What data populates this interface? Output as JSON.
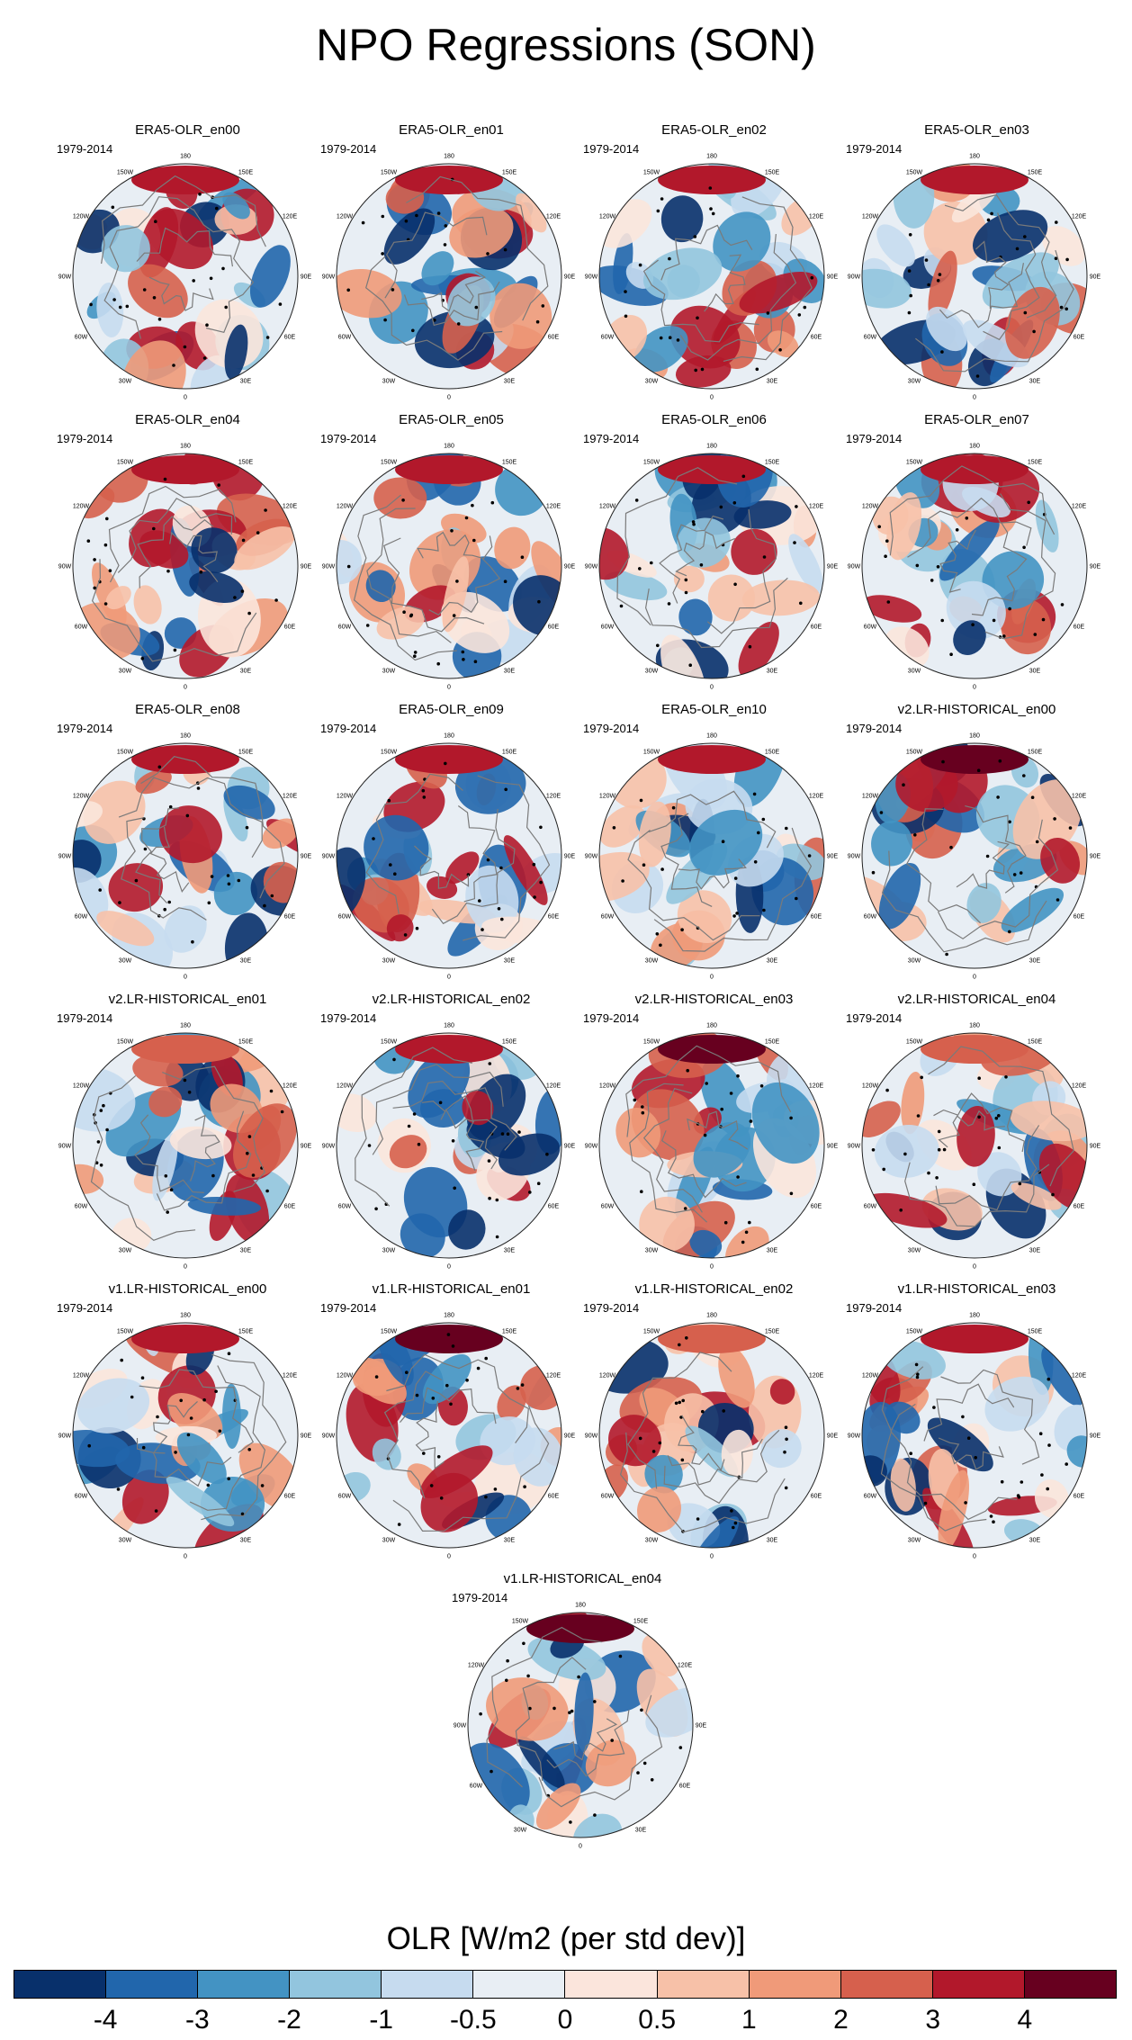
{
  "title": "NPO Regressions (SON)",
  "period_label": "1979-2014",
  "longitude_labels": {
    "deg180": "180",
    "w150": "150W",
    "e150": "150E",
    "w120": "120W",
    "e120": "120E",
    "w90": "90W",
    "e90": "90E",
    "w60": "60W",
    "e60": "60E",
    "w30": "30W",
    "e30": "30E",
    "deg0": "0"
  },
  "panels": [
    {
      "title": "ERA5-OLR_en00"
    },
    {
      "title": "ERA5-OLR_en01"
    },
    {
      "title": "ERA5-OLR_en02"
    },
    {
      "title": "ERA5-OLR_en03"
    },
    {
      "title": "ERA5-OLR_en04"
    },
    {
      "title": "ERA5-OLR_en05"
    },
    {
      "title": "ERA5-OLR_en06"
    },
    {
      "title": "ERA5-OLR_en07"
    },
    {
      "title": "ERA5-OLR_en08"
    },
    {
      "title": "ERA5-OLR_en09"
    },
    {
      "title": "ERA5-OLR_en10"
    },
    {
      "title": "v2.LR-HISTORICAL_en00"
    },
    {
      "title": "v2.LR-HISTORICAL_en01"
    },
    {
      "title": "v2.LR-HISTORICAL_en02"
    },
    {
      "title": "v2.LR-HISTORICAL_en03"
    },
    {
      "title": "v2.LR-HISTORICAL_en04"
    },
    {
      "title": "v1.LR-HISTORICAL_en00"
    },
    {
      "title": "v1.LR-HISTORICAL_en01"
    },
    {
      "title": "v1.LR-HISTORICAL_en02"
    },
    {
      "title": "v1.LR-HISTORICAL_en03"
    },
    {
      "title": "v1.LR-HISTORICAL_en04"
    }
  ],
  "colorbar": {
    "label": "OLR [W/m2 (per std dev)]",
    "colors": [
      "#08306b",
      "#2166ac",
      "#4393c3",
      "#92c5de",
      "#c6dbef",
      "#e8eef4",
      "#fbe5dc",
      "#f7c1a8",
      "#f09a79",
      "#d6604d",
      "#b2182b",
      "#67001f"
    ],
    "ticks": [
      "-4",
      "-3",
      "-2",
      "-1",
      "-0.5",
      "0",
      "0.5",
      "1",
      "2",
      "3",
      "4"
    ]
  }
}
